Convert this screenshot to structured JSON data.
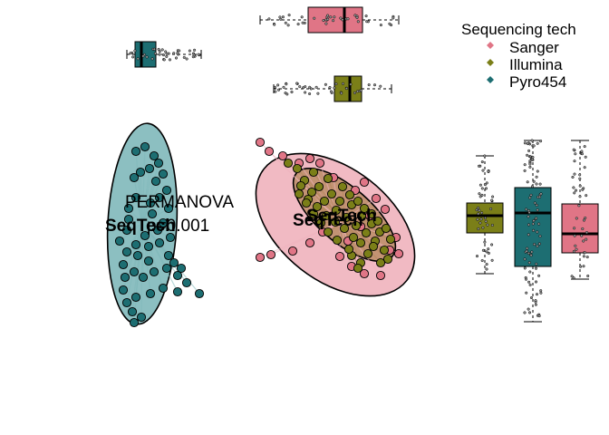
{
  "chart_data": {
    "type": "scatter",
    "title": "",
    "xlabel": "",
    "ylabel": "",
    "grid": false,
    "legend": {
      "title": "Sequencing tech",
      "placement": "top-right",
      "entries": [
        {
          "label": "Sanger",
          "color": "#E07586"
        },
        {
          "label": "Illumina",
          "color": "#7B7F18"
        },
        {
          "label": "Pyro454",
          "color": "#1D6E72"
        }
      ]
    },
    "annotation": "PERMANOVA",
    "annotation_value": "p=0.001",
    "centroid_label": "SeqTech",
    "series": [
      {
        "name": "Sanger",
        "color": "#E07586",
        "fill": "#EFB2BD",
        "centroid": [
          375,
          245
        ],
        "ellipse": {
          "cx": 370,
          "cy": 248,
          "rx": 100,
          "ry": 62,
          "angle": 38
        },
        "points": [
          [
            287,
            157
          ],
          [
            297,
            167
          ],
          [
            312,
            172
          ],
          [
            330,
            180
          ],
          [
            342,
            175
          ],
          [
            353,
            180
          ],
          [
            368,
            196
          ],
          [
            392,
            210
          ],
          [
            402,
            201
          ],
          [
            415,
            219
          ],
          [
            425,
            231
          ],
          [
            408,
            238
          ],
          [
            398,
            250
          ],
          [
            384,
            266
          ],
          [
            375,
            283
          ],
          [
            388,
            294
          ],
          [
            402,
            302
          ],
          [
            420,
            304
          ],
          [
            287,
            284
          ],
          [
            299,
            281
          ],
          [
            323,
            277
          ],
          [
            342,
            268
          ],
          [
            356,
            256
          ],
          [
            430,
            276
          ],
          [
            437,
            262
          ],
          [
            440,
            280
          ]
        ]
      },
      {
        "name": "Illumina",
        "color": "#7B7F18",
        "fill": "#B3865A",
        "centroid": [
          380,
          244
        ],
        "ellipse": {
          "cx": 380,
          "cy": 237,
          "rx": 70,
          "ry": 30,
          "angle": 41
        },
        "points": [
          [
            318,
            180
          ],
          [
            328,
            186
          ],
          [
            336,
            199
          ],
          [
            344,
            212
          ],
          [
            352,
            206
          ],
          [
            358,
            222
          ],
          [
            366,
            214
          ],
          [
            371,
            232
          ],
          [
            375,
            222
          ],
          [
            382,
            240
          ],
          [
            388,
            226
          ],
          [
            393,
            249
          ],
          [
            399,
            238
          ],
          [
            404,
            257
          ],
          [
            410,
            247
          ],
          [
            414,
            266
          ],
          [
            419,
            256
          ],
          [
            424,
            276
          ],
          [
            428,
            286
          ],
          [
            420,
            290
          ],
          [
            406,
            280
          ],
          [
            398,
            268
          ],
          [
            390,
            262
          ],
          [
            380,
            252
          ],
          [
            370,
            245
          ],
          [
            360,
            238
          ],
          [
            350,
            228
          ],
          [
            340,
            220
          ],
          [
            332,
            205
          ],
          [
            346,
            190
          ],
          [
            362,
            197
          ],
          [
            378,
            206
          ],
          [
            386,
            215
          ],
          [
            395,
            222
          ],
          [
            402,
            230
          ],
          [
            410,
            236
          ],
          [
            417,
            244
          ],
          [
            426,
            252
          ],
          [
            431,
            264
          ],
          [
            398,
            290
          ],
          [
            388,
            282
          ],
          [
            372,
            265
          ],
          [
            362,
            256
          ],
          [
            354,
            246
          ],
          [
            346,
            236
          ],
          [
            338,
            224
          ],
          [
            330,
            214
          ],
          [
            412,
            272
          ],
          [
            385,
            275
          ],
          [
            395,
            296
          ]
        ]
      },
      {
        "name": "Pyro454",
        "color": "#1D6E72",
        "fill": "#7FB8BA",
        "centroid": [
          157,
          247
        ],
        "ellipse": {
          "cx": 157,
          "cy": 247,
          "rx": 38,
          "ry": 111,
          "angle": 3
        },
        "points": [
          [
            150,
            167
          ],
          [
            160,
            162
          ],
          [
            170,
            172
          ],
          [
            175,
            180
          ],
          [
            165,
            186
          ],
          [
            155,
            190
          ],
          [
            148,
            196
          ],
          [
            172,
            200
          ],
          [
            180,
            192
          ],
          [
            184,
            210
          ],
          [
            176,
            218
          ],
          [
            166,
            224
          ],
          [
            150,
            218
          ],
          [
            142,
            230
          ],
          [
            168,
            236
          ],
          [
            180,
            246
          ],
          [
            188,
            262
          ],
          [
            176,
            268
          ],
          [
            164,
            272
          ],
          [
            150,
            270
          ],
          [
            140,
            278
          ],
          [
            136,
            292
          ],
          [
            148,
            300
          ],
          [
            158,
            306
          ],
          [
            170,
            300
          ],
          [
            184,
            296
          ],
          [
            196,
            304
          ],
          [
            206,
            312
          ],
          [
            220,
            324
          ],
          [
            196,
            322
          ],
          [
            180,
            318
          ],
          [
            166,
            324
          ],
          [
            150,
            328
          ],
          [
            140,
            334
          ],
          [
            146,
            344
          ],
          [
            156,
            350
          ],
          [
            148,
            356
          ],
          [
            136,
            320
          ],
          [
            138,
            306
          ],
          [
            186,
            282
          ],
          [
            192,
            290
          ],
          [
            200,
            296
          ],
          [
            132,
            266
          ],
          [
            140,
            254
          ],
          [
            186,
            230
          ],
          [
            174,
            254
          ],
          [
            160,
            260
          ],
          [
            142,
            242
          ],
          [
            152,
            282
          ],
          [
            164,
            288
          ]
        ]
      }
    ],
    "marginal_boxplots_top": [
      {
        "series": "Sanger",
        "min": 287,
        "q1": 340,
        "median": 380,
        "q3": 400,
        "max": 440,
        "row": 22
      },
      {
        "series": "Illumina",
        "min": 302,
        "q1": 369,
        "median": 386,
        "q3": 399,
        "max": 432,
        "row": 98
      },
      {
        "series": "Pyro454",
        "min": 140,
        "q1": 149,
        "median": 156,
        "q3": 172,
        "max": 222,
        "row": 60
      }
    ],
    "marginal_boxplots_right": [
      {
        "series": "Illumina",
        "min": 172,
        "q1": 224,
        "median": 238,
        "q3": 257,
        "max": 302,
        "col": 535
      },
      {
        "series": "Pyro454",
        "min": 155,
        "q1": 207,
        "median": 235,
        "q3": 294,
        "max": 355,
        "col": 588
      },
      {
        "series": "Sanger",
        "min": 155,
        "q1": 225,
        "median": 258,
        "q3": 279,
        "max": 308,
        "col": 640
      }
    ]
  }
}
